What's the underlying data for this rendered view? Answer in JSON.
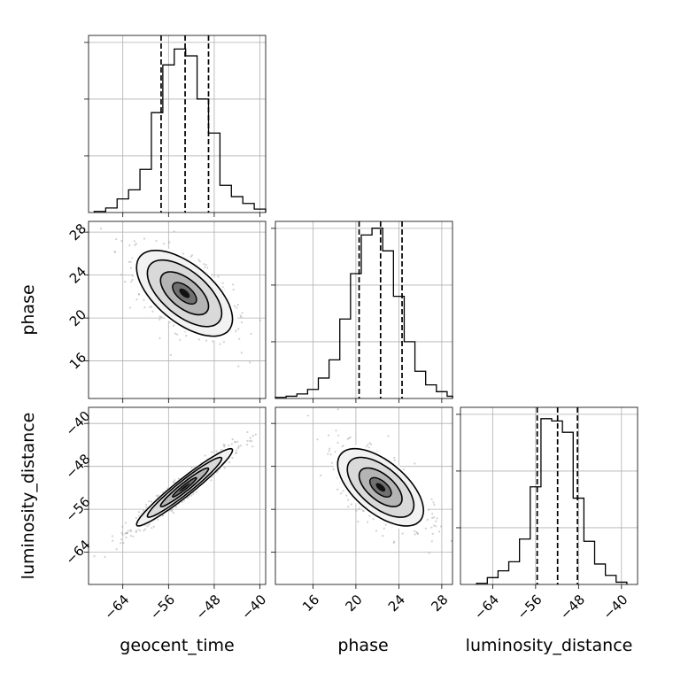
{
  "chart_data": {
    "type": "corner",
    "parameters": [
      {
        "key": "geocent_time",
        "label": "geocent_time",
        "range": [
          -70,
          -39
        ],
        "ticks": [
          -64,
          -56,
          -48,
          -40
        ],
        "tick_labels": [
          "−64",
          "−56",
          "−48",
          "−40"
        ],
        "quantiles": [
          -57.3,
          -53.1,
          -49.0
        ]
      },
      {
        "key": "phase",
        "label": "phase",
        "range": [
          12.5,
          29.0
        ],
        "ticks": [
          16,
          20,
          24,
          28
        ],
        "tick_labels": [
          "16",
          "20",
          "24",
          "28"
        ],
        "quantiles": [
          20.3,
          22.3,
          24.3
        ]
      },
      {
        "key": "luminosity_distance",
        "label": "luminosity_distance",
        "range": [
          -70,
          -37
        ],
        "ticks": [
          -64,
          -56,
          -48,
          -40
        ],
        "tick_labels": [
          "−64",
          "−56",
          "−48",
          "−40"
        ],
        "quantiles": [
          -55.7,
          -51.9,
          -48.2
        ]
      }
    ],
    "marginals": [
      {
        "parameter": "geocent_time",
        "bin_edges": [
          -69,
          -67,
          -65,
          -63,
          -61,
          -59,
          -57,
          -55,
          -53,
          -51,
          -49,
          -47,
          -45,
          -43,
          -41,
          -39
        ],
        "counts": [
          0.005,
          0.02,
          0.06,
          0.1,
          0.19,
          0.44,
          0.65,
          0.72,
          0.69,
          0.5,
          0.35,
          0.12,
          0.07,
          0.04,
          0.015
        ]
      },
      {
        "parameter": "phase",
        "bin_edges": [
          12.5,
          13.5,
          14.5,
          15.5,
          16.5,
          17.5,
          18.5,
          19.5,
          20.5,
          21.5,
          22.5,
          23.5,
          24.5,
          25.5,
          26.5,
          27.5,
          28.5,
          29.0
        ],
        "counts": [
          0.005,
          0.01,
          0.02,
          0.04,
          0.09,
          0.17,
          0.35,
          0.55,
          0.72,
          0.75,
          0.65,
          0.45,
          0.25,
          0.12,
          0.06,
          0.03,
          0.01
        ]
      },
      {
        "parameter": "luminosity_distance",
        "bin_edges": [
          -67,
          -65,
          -63,
          -61,
          -59,
          -57,
          -55,
          -53,
          -51,
          -49,
          -47,
          -45,
          -43,
          -41,
          -39
        ],
        "counts": [
          0.005,
          0.03,
          0.06,
          0.1,
          0.2,
          0.43,
          0.73,
          0.72,
          0.67,
          0.38,
          0.19,
          0.09,
          0.04,
          0.01
        ]
      }
    ],
    "joint": [
      {
        "x": "geocent_time",
        "y": "phase",
        "center": [
          -53.2,
          22.3
        ],
        "sigma": [
          4.2,
          2.0
        ],
        "rho": -0.6
      },
      {
        "x": "geocent_time",
        "y": "luminosity_distance",
        "center": [
          -53.2,
          -51.9
        ],
        "sigma": [
          4.2,
          3.6
        ],
        "rho": 0.96
      },
      {
        "x": "phase",
        "y": "luminosity_distance",
        "center": [
          22.3,
          -51.9
        ],
        "sigma": [
          2.0,
          3.6
        ],
        "rho": -0.6
      }
    ],
    "grid": true,
    "xlabel_row": [
      "geocent_time",
      "phase",
      "luminosity_distance"
    ],
    "ylabel_col": [
      "",
      "phase",
      "luminosity_distance"
    ]
  }
}
